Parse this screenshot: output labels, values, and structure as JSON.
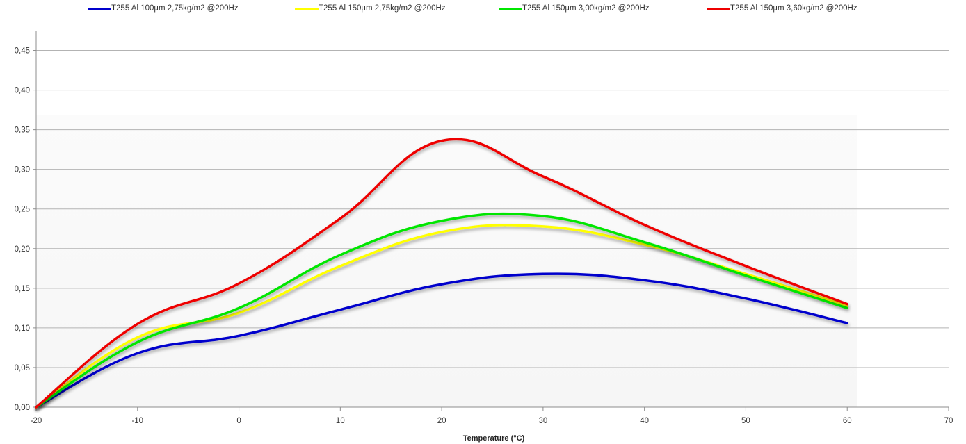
{
  "chart_data": {
    "type": "line",
    "title": "",
    "xlabel": "Temperature (°C)",
    "ylabel": "",
    "xlim": [
      -20,
      70
    ],
    "ylim": [
      0,
      0.475
    ],
    "x_ticks": [
      "-20",
      "-10",
      "0",
      "10",
      "20",
      "30",
      "40",
      "50",
      "60",
      "70"
    ],
    "y_ticks": [
      "0,00",
      "0,05",
      "0,10",
      "0,15",
      "0,20",
      "0,25",
      "0,30",
      "0,35",
      "0,40",
      "0,45"
    ],
    "grid": "horizontal",
    "legend_position": "top",
    "x": [
      -20,
      -10,
      0,
      10,
      20,
      30,
      40,
      50,
      60
    ],
    "series": [
      {
        "name": "T255 Al 100µm 2,75kg/m2 @200Hz",
        "color": "#0000cc",
        "values": [
          0.0,
          0.068,
          0.09,
          0.123,
          0.155,
          0.168,
          0.16,
          0.137,
          0.106
        ]
      },
      {
        "name": "T255 Al 150µm 2,75kg/m2 @200Hz",
        "color": "#ffff00",
        "values": [
          0.0,
          0.088,
          0.119,
          0.178,
          0.221,
          0.228,
          0.205,
          0.168,
          0.128
        ]
      },
      {
        "name": "T255 Al 150µm 3,00kg/m2 @200Hz",
        "color": "#00e600",
        "values": [
          0.0,
          0.082,
          0.125,
          0.192,
          0.235,
          0.241,
          0.208,
          0.166,
          0.125
        ]
      },
      {
        "name": "T255 Al 150µm 3,60kg/m2 @200Hz",
        "color": "#ee0000",
        "values": [
          0.0,
          0.105,
          0.156,
          0.238,
          0.336,
          0.291,
          0.23,
          0.178,
          0.13
        ]
      }
    ]
  }
}
